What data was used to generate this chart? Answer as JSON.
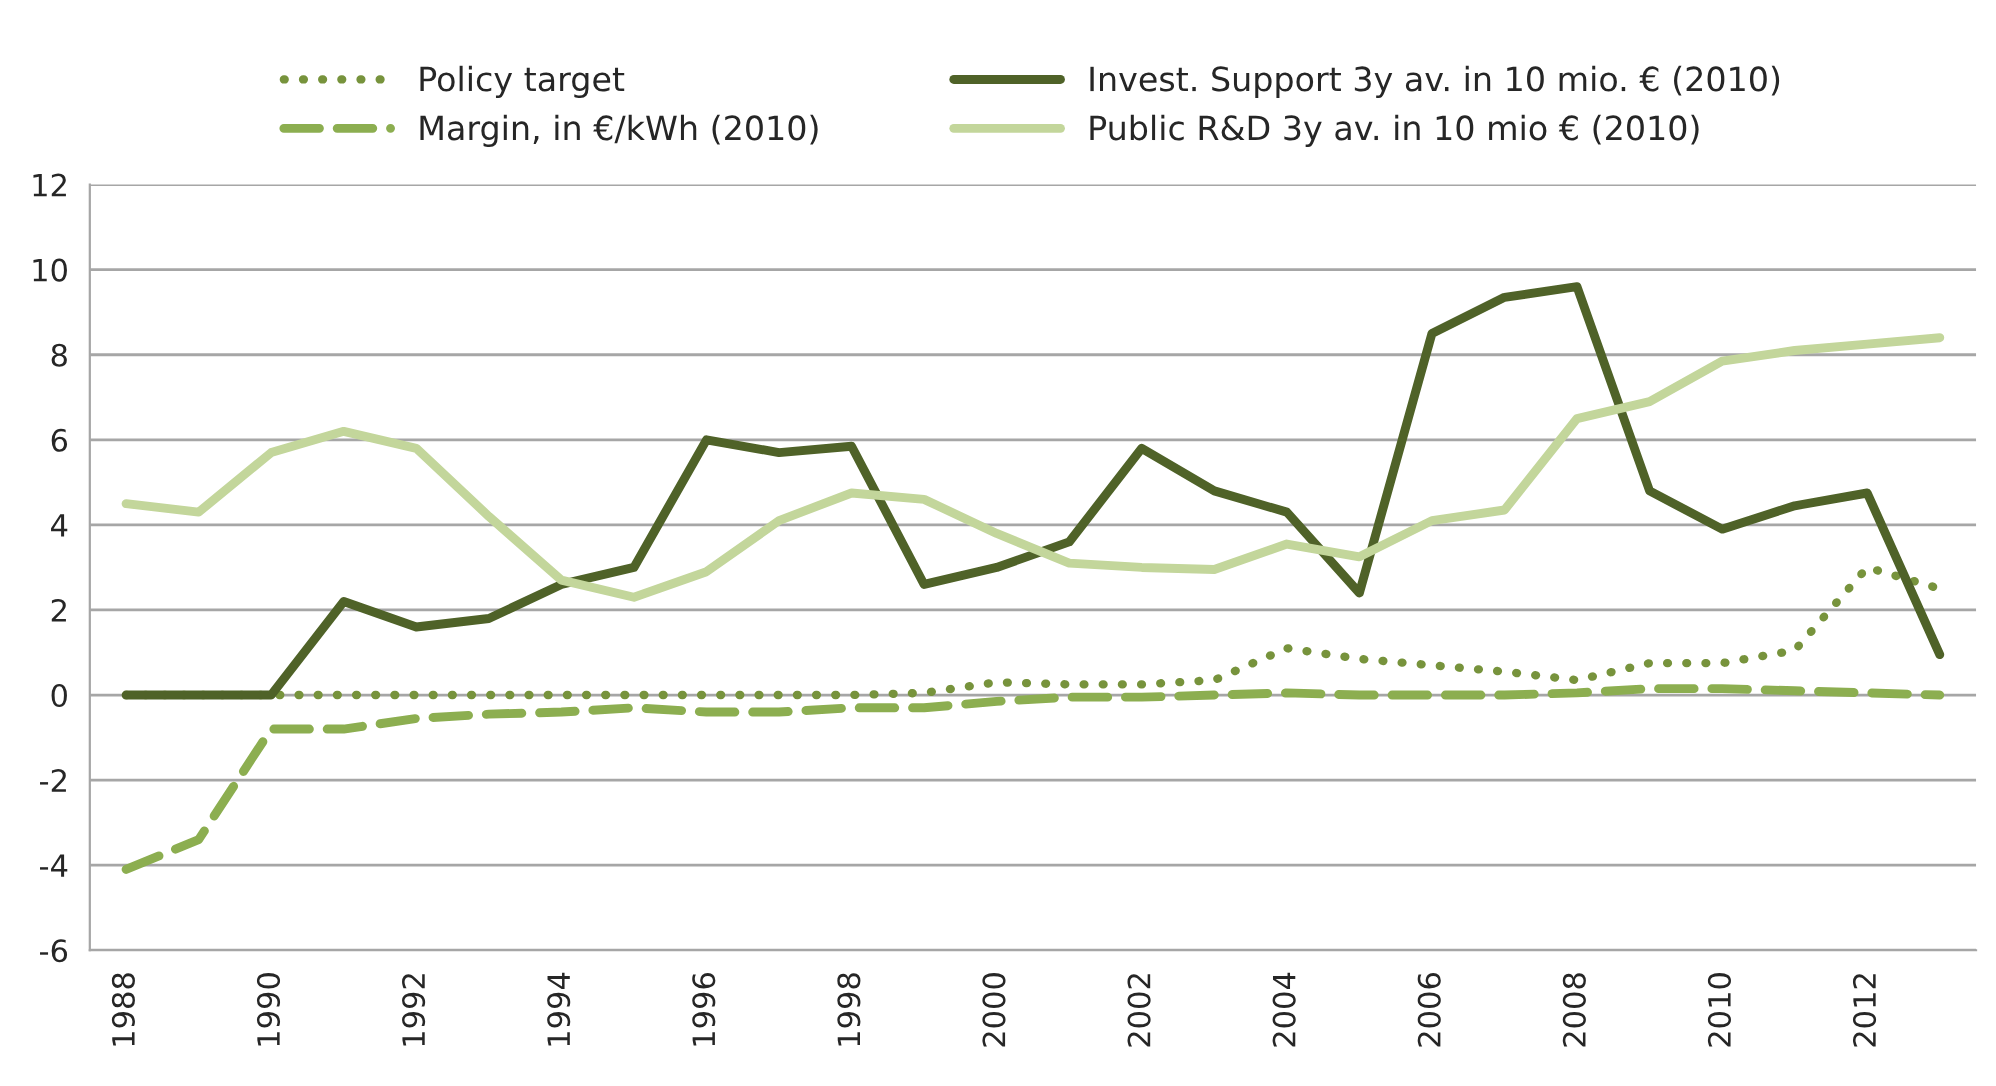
{
  "chart_data": {
    "type": "line",
    "x": [
      1988,
      1989,
      1990,
      1991,
      1992,
      1993,
      1994,
      1995,
      1996,
      1997,
      1998,
      1999,
      2000,
      2001,
      2002,
      2003,
      2004,
      2005,
      2006,
      2007,
      2008,
      2009,
      2010,
      2011,
      2012,
      2013
    ],
    "series": [
      {
        "name": "Policy target",
        "color": "#77933c",
        "line_style": "dotted",
        "values": [
          0,
          0,
          0,
          0,
          0,
          0,
          0,
          0,
          0,
          0,
          0,
          0.05,
          0.3,
          0.25,
          0.25,
          0.35,
          1.1,
          0.85,
          0.7,
          0.55,
          0.35,
          0.75,
          0.75,
          1.05,
          3.0,
          2.5
        ]
      },
      {
        "name": "Margin, in €/kWh (2010)",
        "color": "#8cae50",
        "line_style": "dashed",
        "values": [
          -4.1,
          -3.4,
          -0.8,
          -0.8,
          -0.55,
          -0.45,
          -0.4,
          -0.3,
          -0.4,
          -0.4,
          -0.3,
          -0.3,
          -0.15,
          -0.05,
          -0.05,
          0,
          0.05,
          0,
          0,
          0,
          0.05,
          0.15,
          0.15,
          0.1,
          0.05,
          0
        ]
      },
      {
        "name": "Invest. Support 3y av. in 10 mio. € (2010)",
        "color": "#4f6228",
        "line_style": "solid",
        "values": [
          0,
          0,
          0,
          2.2,
          1.6,
          1.8,
          2.6,
          3.0,
          6.0,
          5.7,
          5.85,
          2.6,
          3.0,
          3.6,
          5.8,
          4.8,
          4.3,
          2.4,
          8.5,
          9.35,
          9.6,
          4.8,
          3.9,
          4.45,
          4.75,
          0.95
        ]
      },
      {
        "name": "Public R&D 3y av. in 10 mio € (2010)",
        "color": "#c3d69b",
        "line_style": "solid",
        "values": [
          4.5,
          4.3,
          5.7,
          6.2,
          5.8,
          4.2,
          2.7,
          2.3,
          2.9,
          4.1,
          4.75,
          4.6,
          3.8,
          3.1,
          3.0,
          2.95,
          3.55,
          3.25,
          4.1,
          4.35,
          6.5,
          6.9,
          7.85,
          8.1,
          8.25,
          8.4
        ]
      }
    ],
    "xlim": [
      1987.5,
      2013.5
    ],
    "xticks": [
      1988,
      1990,
      1992,
      1994,
      1996,
      1998,
      2000,
      2002,
      2004,
      2006,
      2008,
      2010,
      2012
    ],
    "ylim": [
      -6,
      12
    ],
    "yticks": [
      -6,
      -4,
      -2,
      0,
      2,
      4,
      6,
      8,
      10,
      12
    ],
    "grid": "y",
    "legend": "top",
    "marker": "none"
  }
}
